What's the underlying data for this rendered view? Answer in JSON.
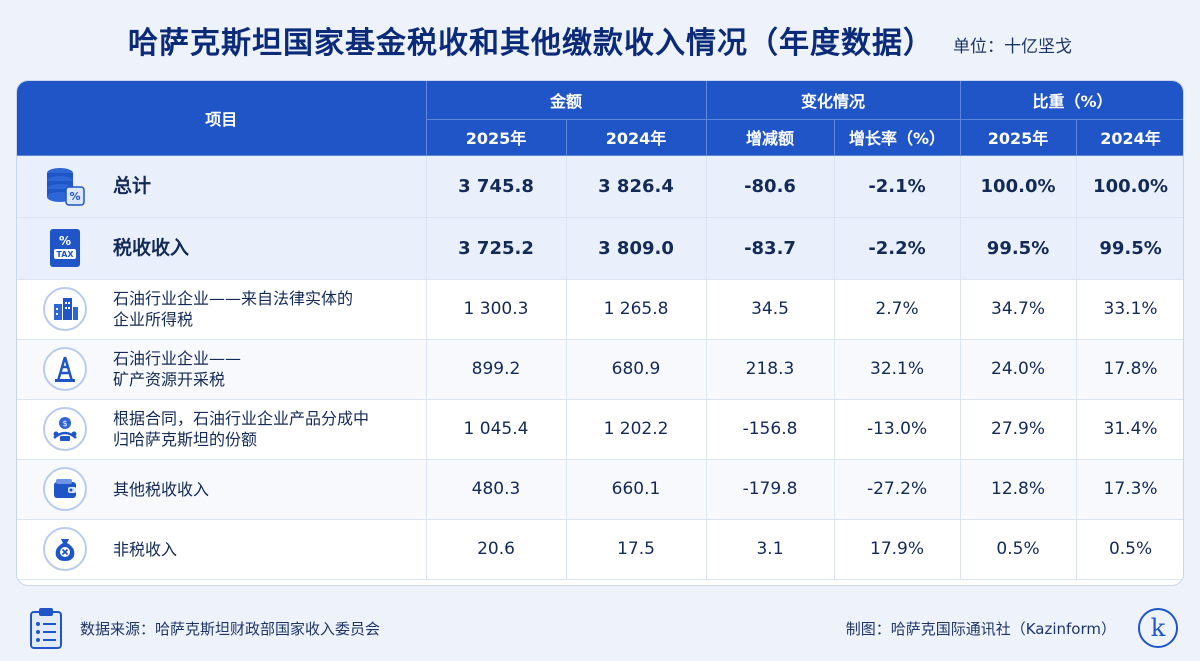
{
  "title": "哈萨克斯坦国家基金税收和其他缴款收入情况（年度数据）",
  "unit": "单位：十亿坚戈",
  "header": {
    "item": "项目",
    "amount": "金额",
    "change": "变化情况",
    "share": "比重（%）",
    "y2025": "2025年",
    "y2024": "2024年",
    "diff": "增减额",
    "rate": "增长率（%）",
    "s2025": "2025年",
    "s2024": "2024年"
  },
  "chart_data": {
    "type": "table",
    "columns": [
      "项目",
      "2025年",
      "2024年",
      "增减额",
      "增长率（%）",
      "2025年",
      "2024年"
    ],
    "rows": [
      {
        "item": [
          "总计"
        ],
        "v2025": "3 745.8",
        "v2024": "3 826.4",
        "diff": "-80.6",
        "rate": "-2.1%",
        "s2025": "100.0%",
        "s2024": "100.0%",
        "icon": "coins-stack-icon"
      },
      {
        "item": [
          "税收收入"
        ],
        "v2025": "3 725.2",
        "v2024": "3 809.0",
        "diff": "-83.7",
        "rate": "-2.2%",
        "s2025": "99.5%",
        "s2024": "99.5%",
        "icon": "tax-document-icon"
      },
      {
        "item": [
          "石油行业企业——来自法律实体的",
          "企业所得税"
        ],
        "v2025": "1 300.3",
        "v2024": "1 265.8",
        "diff": "34.5",
        "rate": "2.7%",
        "s2025": "34.7%",
        "s2024": "33.1%",
        "icon": "buildings-icon"
      },
      {
        "item": [
          "石油行业企业——",
          "矿产资源开采税"
        ],
        "v2025": "899.2",
        "v2024": "680.9",
        "diff": "218.3",
        "rate": "32.1%",
        "s2025": "24.0%",
        "s2024": "17.8%",
        "icon": "oil-derrick-icon"
      },
      {
        "item": [
          "根据合同，石油行业企业产品分成中",
          "归哈萨克斯坦的份额"
        ],
        "v2025": "1 045.4",
        "v2024": "1 202.2",
        "diff": "-156.8",
        "rate": "-13.0%",
        "s2025": "27.9%",
        "s2024": "31.4%",
        "icon": "money-share-icon"
      },
      {
        "item": [
          "其他税收收入"
        ],
        "v2025": "480.3",
        "v2024": "660.1",
        "diff": "-179.8",
        "rate": "-27.2%",
        "s2025": "12.8%",
        "s2024": "17.3%",
        "icon": "wallet-icon"
      },
      {
        "item": [
          "非税收入"
        ],
        "v2025": "20.6",
        "v2024": "17.5",
        "diff": "3.1",
        "rate": "17.9%",
        "s2025": "0.5%",
        "s2024": "0.5%",
        "icon": "money-bag-icon"
      }
    ]
  },
  "footer": {
    "source": "数据来源：哈萨克斯坦财政部国家收入委员会",
    "credit": "制图：哈萨克国际通讯社（Kazinform）",
    "logo_letter": "k"
  }
}
